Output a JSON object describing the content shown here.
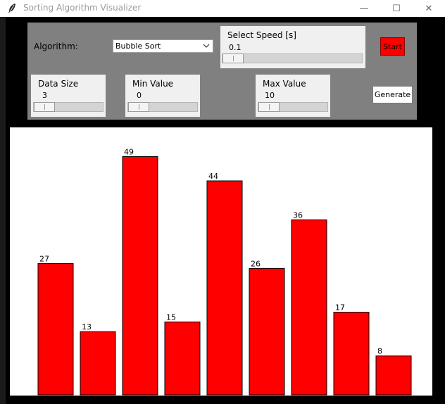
{
  "window": {
    "title": "Sorting Algorithm Visualizer",
    "controls": {
      "minimize": "—",
      "maximize": "☐",
      "close": "✕"
    }
  },
  "controls": {
    "algorithm_label": "Algorithm:",
    "algorithm_value": "Bubble Sort",
    "speed": {
      "label": "Select Speed [s]",
      "value": "0.1"
    },
    "start_label": "Start",
    "data_size": {
      "label": "Data Size",
      "value": "3"
    },
    "min_value": {
      "label": "Min Value",
      "value": "0"
    },
    "max_value": {
      "label": "Max Value",
      "value": "10"
    },
    "generate_label": "Generate"
  },
  "colors": {
    "bar": "#ff0000",
    "panel": "#808080",
    "start_button": "#ff0000"
  },
  "chart_data": {
    "type": "bar",
    "values": [
      27,
      13,
      49,
      15,
      44,
      26,
      36,
      17,
      8
    ],
    "ylim": [
      0,
      55
    ]
  }
}
